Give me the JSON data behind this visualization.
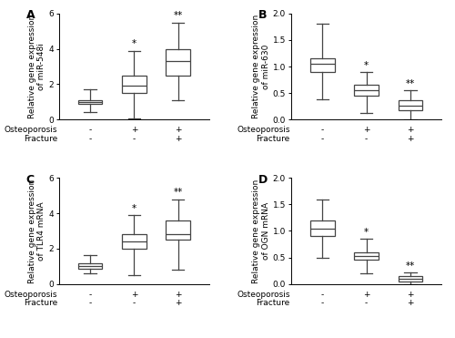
{
  "panels": [
    {
      "label": "A",
      "ylabel": "Relative gene expression\nof miR-548i",
      "ylim": [
        0,
        6
      ],
      "yticks": [
        0,
        2,
        4,
        6
      ],
      "boxes": [
        {
          "whislo": 0.4,
          "q1": 0.9,
          "med": 1.0,
          "q3": 1.1,
          "whishi": 1.7,
          "sig": null
        },
        {
          "whislo": 0.05,
          "q1": 1.5,
          "med": 1.9,
          "q3": 2.5,
          "whishi": 3.9,
          "sig": "*"
        },
        {
          "whislo": 1.1,
          "q1": 2.5,
          "med": 3.3,
          "q3": 4.0,
          "whishi": 5.5,
          "sig": "**"
        }
      ]
    },
    {
      "label": "B",
      "ylabel": "Relative gene expression\nof miR-630",
      "ylim": [
        0,
        2.0
      ],
      "yticks": [
        0.0,
        0.5,
        1.0,
        1.5,
        2.0
      ],
      "boxes": [
        {
          "whislo": 0.38,
          "q1": 0.9,
          "med": 1.05,
          "q3": 1.15,
          "whishi": 1.8,
          "sig": null
        },
        {
          "whislo": 0.12,
          "q1": 0.45,
          "med": 0.55,
          "q3": 0.65,
          "whishi": 0.9,
          "sig": "*"
        },
        {
          "whislo": 0.0,
          "q1": 0.18,
          "med": 0.27,
          "q3": 0.37,
          "whishi": 0.55,
          "sig": "**"
        }
      ]
    },
    {
      "label": "C",
      "ylabel": "Relative gene expression\nof TLR4 mRNA",
      "ylim": [
        0,
        6
      ],
      "yticks": [
        0,
        2,
        4,
        6
      ],
      "boxes": [
        {
          "whislo": 0.6,
          "q1": 0.85,
          "med": 1.0,
          "q3": 1.15,
          "whishi": 1.65,
          "sig": null
        },
        {
          "whislo": 0.5,
          "q1": 2.0,
          "med": 2.4,
          "q3": 2.8,
          "whishi": 3.9,
          "sig": "*"
        },
        {
          "whislo": 0.8,
          "q1": 2.5,
          "med": 2.8,
          "q3": 3.6,
          "whishi": 4.8,
          "sig": "**"
        }
      ]
    },
    {
      "label": "D",
      "ylabel": "Relative gene expression\nof OGN mRNA",
      "ylim": [
        0,
        2.0
      ],
      "yticks": [
        0.0,
        0.5,
        1.0,
        1.5,
        2.0
      ],
      "boxes": [
        {
          "whislo": 0.5,
          "q1": 0.9,
          "med": 1.05,
          "q3": 1.2,
          "whishi": 1.6,
          "sig": null
        },
        {
          "whislo": 0.2,
          "q1": 0.45,
          "med": 0.52,
          "q3": 0.6,
          "whishi": 0.85,
          "sig": "*"
        },
        {
          "whislo": 0.0,
          "q1": 0.05,
          "med": 0.1,
          "q3": 0.15,
          "whishi": 0.22,
          "sig": "**"
        }
      ]
    }
  ],
  "group_labels": [
    [
      "Osteoporosis",
      "-",
      "+",
      "+"
    ],
    [
      "Fracture",
      "-",
      "-",
      "+"
    ]
  ],
  "box_color": "#ffffff",
  "box_edgecolor": "#444444",
  "whisker_color": "#444444",
  "median_color": "#444444",
  "cap_color": "#444444",
  "linewidth": 0.9,
  "box_width": 0.55,
  "sig_fontsize": 7.5,
  "label_fontsize": 6.5,
  "ylabel_fontsize": 6.5,
  "tick_fontsize": 6.5,
  "panel_label_fontsize": 9
}
